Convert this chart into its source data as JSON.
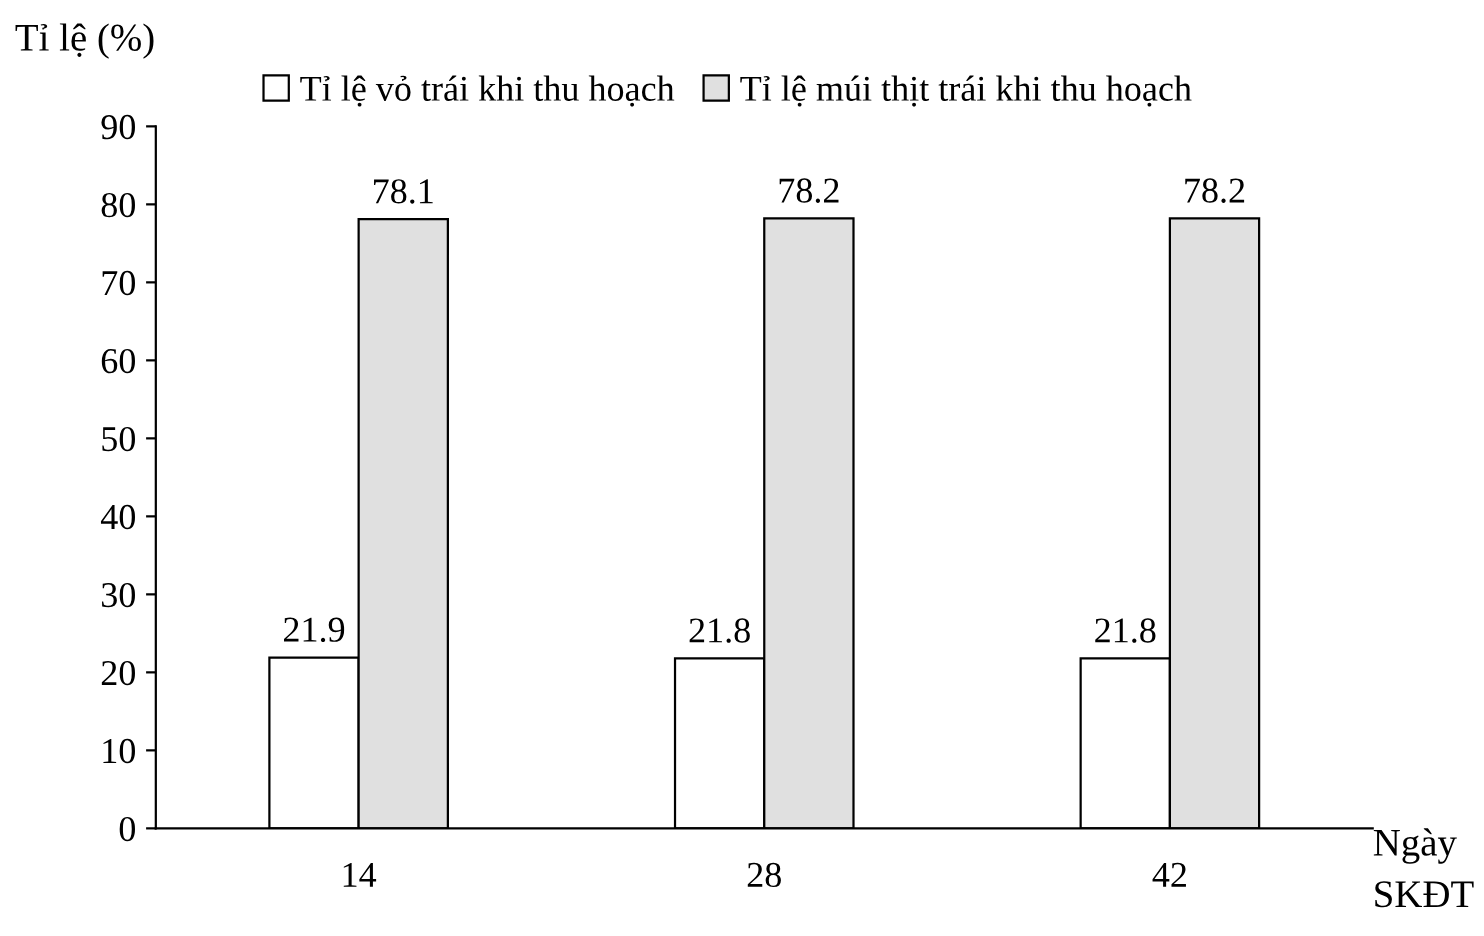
{
  "chart_data": {
    "type": "bar",
    "ylabel": "Tỉ lệ (%)",
    "xlabel": "Ngày\nSKĐT",
    "categories": [
      "14",
      "28",
      "42"
    ],
    "series": [
      {
        "name": "Tỉ lệ vỏ trái khi thu hoạch",
        "color": "#ffffff",
        "values": [
          21.9,
          21.8,
          21.8
        ]
      },
      {
        "name": "Tỉ lệ múi thịt trái khi thu hoạch",
        "color": "#e0e0e0",
        "values": [
          78.1,
          78.2,
          78.2
        ]
      }
    ],
    "ylim": [
      0,
      90
    ],
    "yticks": [
      0,
      10,
      20,
      30,
      40,
      50,
      60,
      70,
      80,
      90
    ],
    "data_labels": true,
    "grid": false,
    "legend": "top"
  }
}
